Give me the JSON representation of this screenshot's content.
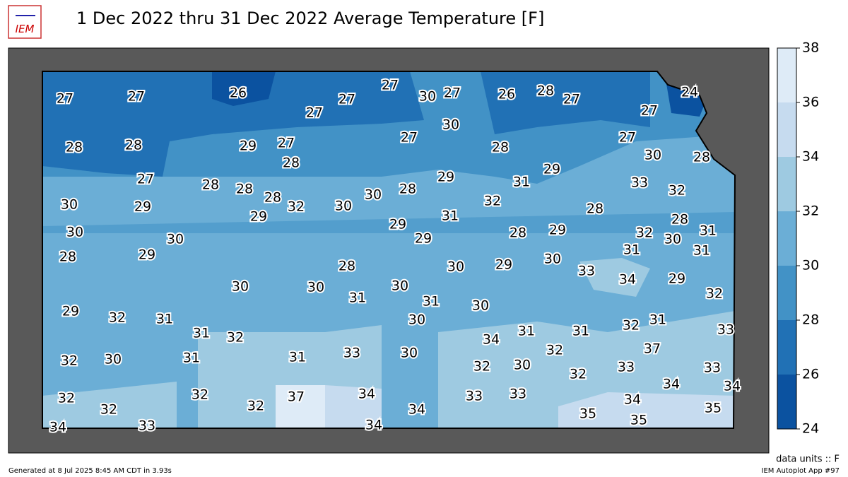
{
  "header": {
    "title": "1 Dec 2022 thru 31 Dec 2022 Average Temperature [F]",
    "logo": "IEM"
  },
  "stations": [
    27,
    27,
    26,
    27,
    27,
    27,
    30,
    27,
    26,
    28,
    27,
    27,
    24,
    28,
    28,
    29,
    27,
    28,
    27,
    30,
    28,
    27,
    30,
    28,
    27,
    28,
    28,
    28,
    30,
    29,
    29,
    32,
    30,
    30,
    28,
    29,
    31,
    29,
    32,
    28,
    33,
    32,
    30,
    30,
    28,
    29,
    29,
    29,
    31,
    28,
    29,
    32,
    28,
    31,
    30,
    31,
    31,
    28,
    30,
    29,
    30,
    33,
    34,
    29,
    32,
    30,
    30,
    31,
    30,
    31,
    30,
    29,
    32,
    31,
    30,
    31,
    32,
    31,
    31,
    32,
    31,
    33,
    34,
    31,
    31,
    33,
    30,
    32,
    37,
    32,
    30,
    32,
    30,
    32,
    33,
    33,
    34,
    34,
    32,
    32,
    32,
    32,
    37,
    34,
    34,
    33,
    33,
    34,
    35,
    35,
    35,
    34,
    33,
    34
  ],
  "colorbar": {
    "ticks": [
      24,
      26,
      28,
      30,
      32,
      34,
      36,
      38
    ],
    "colors": [
      "#0b52a0",
      "#2171b5",
      "#4292c6",
      "#6baed6",
      "#9ecae1",
      "#c6dbef",
      "#deebf7"
    ]
  },
  "units": "data units :: F",
  "footer": {
    "generated": "Generated at 8 Jul 2025 8:45 AM CDT in 3.93s",
    "app": "IEM Autoplot App #97"
  }
}
